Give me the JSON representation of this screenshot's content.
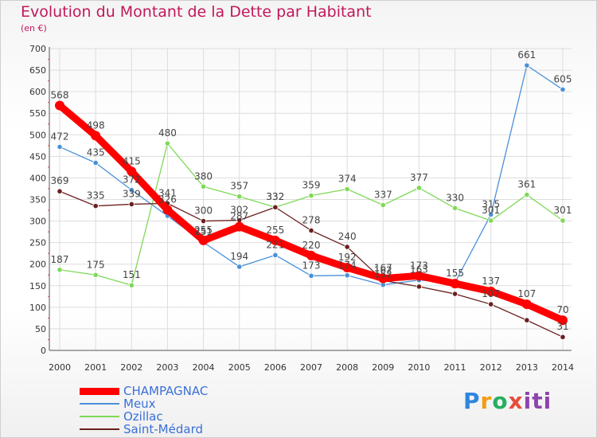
{
  "title": "Evolution du Montant de la Dette par Habitant",
  "subtitle": "(en €)",
  "logo": {
    "p": "P",
    "r": "r",
    "o": "o",
    "x": "x",
    "i": "iti"
  },
  "chart_data": {
    "type": "line",
    "title": "Evolution du Montant de la Dette par Habitant",
    "ylabel": "(en €)",
    "xlabel": "",
    "ylim": [
      0,
      700
    ],
    "yticks": [
      0,
      50,
      100,
      150,
      200,
      250,
      300,
      350,
      400,
      450,
      500,
      550,
      600,
      650,
      700
    ],
    "grid": true,
    "legend_position": "bottom-left",
    "x": [
      "2000",
      "2001",
      "2002",
      "2003",
      "2004",
      "2005",
      "2006",
      "2007",
      "2008",
      "2009",
      "2010",
      "2011",
      "2012",
      "2013",
      "2014"
    ],
    "series": [
      {
        "name": "CHAMPAGNAC",
        "color": "#ff0000",
        "values": [
          568,
          498,
          415,
          326,
          255,
          287,
          255,
          220,
          192,
          167,
          173,
          155,
          137,
          107,
          70
        ],
        "labels": [
          "568",
          "498",
          "415",
          "326",
          "255",
          "287",
          "255",
          "220",
          "192",
          "167",
          "173",
          "155",
          "137",
          "107",
          "70"
        ]
      },
      {
        "name": "Meux",
        "color": "#4a90d9",
        "values": [
          472,
          435,
          372,
          312,
          251,
          194,
          221,
          173,
          174,
          152,
          163,
          157,
          315,
          661,
          605
        ],
        "labels": [
          "472",
          "435",
          "372",
          "",
          "251",
          "194",
          "221",
          "173",
          "174",
          "152",
          "163",
          "",
          "315",
          "661",
          "605"
        ]
      },
      {
        "name": "Ozillac",
        "color": "#7ed957",
        "values": [
          187,
          175,
          151,
          480,
          380,
          357,
          332,
          359,
          374,
          337,
          377,
          330,
          301,
          361,
          301
        ],
        "labels": [
          "187",
          "175",
          "151",
          "480",
          "380",
          "357",
          "332",
          "359",
          "374",
          "337",
          "377",
          "330",
          "301",
          "361",
          "301"
        ]
      },
      {
        "name": "Saint-Médard",
        "color": "#6b1f1f",
        "values": [
          369,
          335,
          339,
          341,
          300,
          302,
          332,
          278,
          240,
          162,
          148,
          131,
          107,
          70,
          31
        ],
        "labels": [
          "369",
          "335",
          "339",
          "341",
          "300",
          "302",
          "332",
          "278",
          "240",
          "162",
          "",
          "",
          "107",
          "",
          "31"
        ]
      }
    ]
  }
}
